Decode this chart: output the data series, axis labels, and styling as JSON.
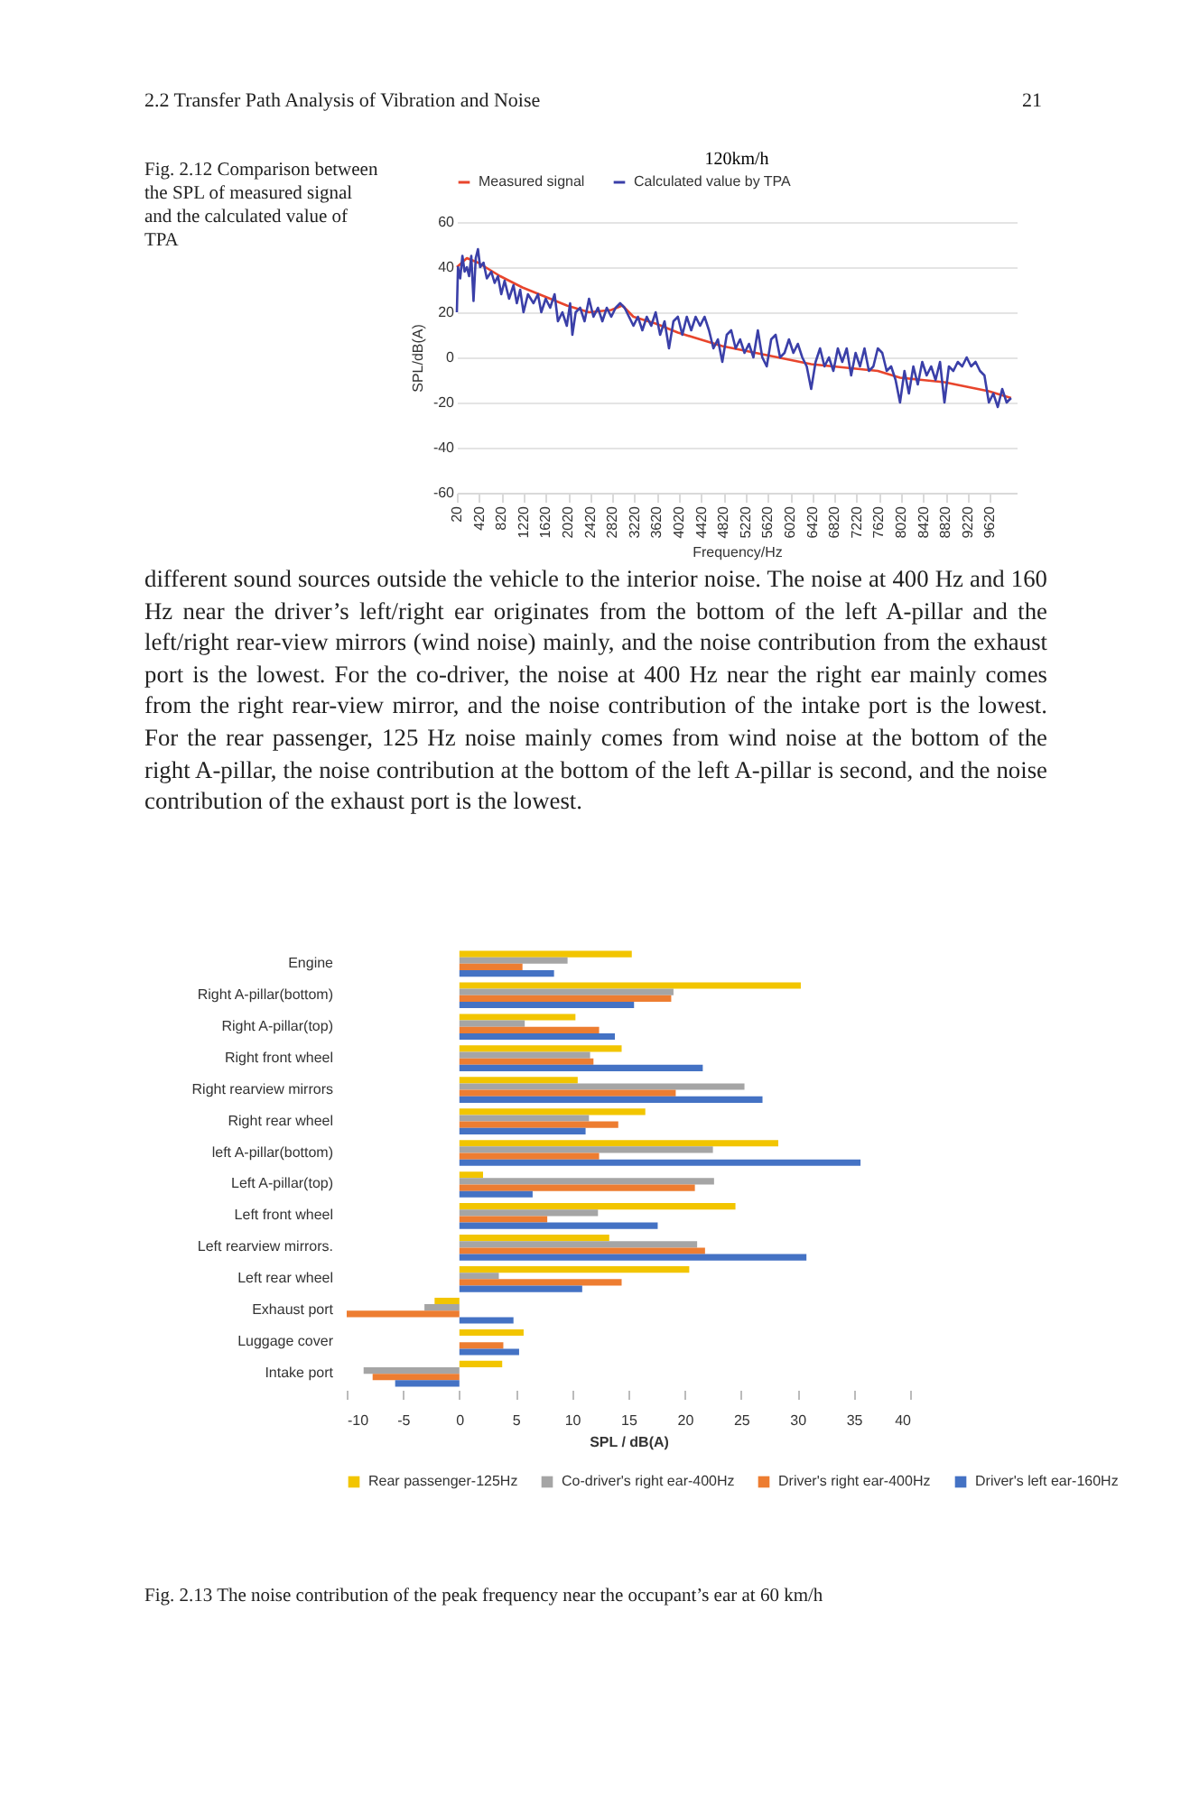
{
  "chart_data": [
    {
      "type": "line",
      "title": "120km/h",
      "xlabel": "Frequency/Hz",
      "ylabel": "SPL/dB(A)",
      "annotations": [
        "2.2 Transfer Path Analysis of Vibration and Noise",
        "21",
        "Fig. 2.12 Comparison between the SPL of measured signal and the calculated value of TPA"
      ],
      "xlim": [
        20,
        10100
      ],
      "xticks": [
        20,
        420,
        820,
        1220,
        1620,
        2020,
        2420,
        2820,
        3220,
        3620,
        4020,
        4420,
        4820,
        5220,
        5620,
        6020,
        6420,
        6820,
        7220,
        7620,
        8020,
        8420,
        8820,
        9220,
        9620
      ],
      "ylim": [
        -60,
        60
      ],
      "yticks": [
        -60,
        -40,
        -20,
        0,
        20,
        40,
        60
      ],
      "grid": "y",
      "legend": "top",
      "series": [
        {
          "name": "Measured signal",
          "color": "#e8452c",
          "x": [
            20,
            200,
            400,
            800,
            1200,
            1600,
            2000,
            2400,
            2800,
            3000,
            3200,
            3600,
            4000,
            4400,
            4800,
            5200,
            5600,
            6000,
            6400,
            6800,
            7200,
            7600,
            8000,
            8400,
            8800,
            9200,
            9600,
            10000
          ],
          "values": [
            40,
            44,
            42,
            36,
            31,
            27,
            23,
            20,
            21,
            23,
            18,
            15,
            11,
            8,
            5,
            3,
            1,
            -1,
            -3,
            -4,
            -5,
            -6,
            -9,
            -10,
            -11,
            -13,
            -15,
            -18
          ]
        },
        {
          "name": "Calculated value by TPA",
          "color": "#3a3fa8",
          "x": [
            20,
            40,
            80,
            120,
            160,
            200,
            240,
            280,
            320,
            360,
            400,
            440,
            500,
            560,
            640,
            700,
            760,
            820,
            880,
            960,
            1040,
            1100,
            1160,
            1220,
            1300,
            1400,
            1480,
            1540,
            1620,
            1700,
            1780,
            1840,
            1920,
            2000,
            2060,
            2100,
            2160,
            2240,
            2320,
            2400,
            2480,
            2560,
            2640,
            2720,
            2800,
            2880,
            2960,
            3040,
            3120,
            3200,
            3280,
            3360,
            3440,
            3520,
            3600,
            3680,
            3760,
            3840,
            3920,
            4000,
            4080,
            4160,
            4240,
            4320,
            4400,
            4480,
            4560,
            4640,
            4720,
            4800,
            4880,
            4960,
            5040,
            5120,
            5200,
            5280,
            5360,
            5440,
            5520,
            5600,
            5680,
            5760,
            5840,
            5920,
            6000,
            6080,
            6160,
            6240,
            6320,
            6400,
            6480,
            6560,
            6640,
            6720,
            6800,
            6880,
            6960,
            7040,
            7120,
            7200,
            7280,
            7360,
            7440,
            7520,
            7600,
            7680,
            7760,
            7840,
            7920,
            8000,
            8080,
            8160,
            8240,
            8320,
            8400,
            8480,
            8560,
            8640,
            8720,
            8800,
            8880,
            8960,
            9040,
            9120,
            9200,
            9280,
            9360,
            9440,
            9520,
            9600,
            9680,
            9760,
            9840,
            9920,
            10000
          ],
          "values": [
            20,
            40,
            35,
            45,
            38,
            40,
            36,
            45,
            25,
            44,
            48,
            40,
            42,
            35,
            38,
            33,
            36,
            28,
            34,
            26,
            32,
            24,
            30,
            20,
            28,
            24,
            28,
            20,
            26,
            22,
            28,
            16,
            20,
            14,
            24,
            10,
            20,
            22,
            16,
            26,
            18,
            22,
            16,
            22,
            18,
            22,
            24,
            22,
            18,
            14,
            18,
            12,
            18,
            14,
            20,
            10,
            16,
            4,
            16,
            18,
            10,
            18,
            12,
            18,
            14,
            18,
            12,
            4,
            8,
            -2,
            10,
            12,
            4,
            8,
            2,
            6,
            0,
            12,
            0,
            -4,
            8,
            10,
            0,
            2,
            8,
            2,
            6,
            0,
            -4,
            -14,
            -2,
            4,
            -4,
            0,
            -6,
            4,
            -2,
            4,
            -8,
            2,
            -4,
            4,
            -6,
            -4,
            4,
            2,
            -6,
            -4,
            -10,
            -20,
            -6,
            -16,
            -4,
            -12,
            -2,
            -8,
            -4,
            -10,
            -2,
            -20,
            -4,
            -6,
            -2,
            -4,
            0,
            -4,
            -2,
            -6,
            -8,
            -20,
            -16,
            -22,
            -14,
            -20,
            -18
          ]
        }
      ]
    },
    {
      "type": "bar",
      "orientation": "horizontal",
      "xlabel": "SPL / dB(A)",
      "legend": "bottom",
      "annotations": [
        "different sound sources outside the vehicle to the interior noise. The noise at 400 Hz and 160 Hz near the driver’s left/right ear originates from the bottom of the left A-pillar and the left/right rear-view mirrors (wind noise) mainly, and the noise contribution from the exhaust port is the lowest. For the co-driver, the noise at 400 Hz near the right ear mainly comes from the right rear-view mirror, and the noise contribution of the intake port is the lowest. For the rear passenger, 125 Hz noise mainly comes from wind noise at the bottom of the right A-pillar, the noise contribution at the bottom of the left A-pillar is second, and the noise contribution of the exhaust port is the lowest.",
        "Fig. 2.13 The noise contribution of the peak frequency near the occupant’s ear at 60 km/h"
      ],
      "categories": [
        "Engine",
        "Right A-pillar(bottom)",
        "Right A-pillar(top)",
        "Right front wheel",
        "Right rearview mirrors",
        "Right rear wheel",
        "left A-pillar(bottom)",
        "Left A-pillar(top)",
        "Left front wheel",
        "Left rearview mirrors.",
        "Left rear wheel",
        "Exhaust port",
        "Luggage cover",
        "Intake port"
      ],
      "xlim": [
        -10,
        40
      ],
      "xticks": [
        -10,
        -5,
        0,
        5,
        10,
        15,
        20,
        25,
        30,
        35,
        40
      ],
      "series": [
        {
          "name": "Rear passenger-125Hz",
          "color": "#f2c500",
          "values": [
            15.3,
            30.3,
            10.3,
            14.4,
            10.5,
            16.5,
            28.3,
            2.1,
            24.5,
            13.3,
            20.4,
            -2.2,
            5.7,
            3.8
          ]
        },
        {
          "name": "Co-driver's right ear-400Hz",
          "color": "#a5a5a5",
          "values": [
            9.6,
            19.0,
            5.8,
            11.6,
            25.3,
            11.5,
            22.5,
            22.6,
            12.3,
            21.1,
            3.5,
            -3.1,
            null,
            -8.5
          ]
        },
        {
          "name": "Driver's right ear-400Hz",
          "color": "#ed7d31",
          "values": [
            5.6,
            18.8,
            12.4,
            11.9,
            19.2,
            14.1,
            12.4,
            20.9,
            7.8,
            21.8,
            14.4,
            -10.0,
            3.9,
            -7.7
          ]
        },
        {
          "name": "Driver's left ear-160Hz",
          "color": "#4472c4",
          "values": [
            8.4,
            15.5,
            13.8,
            21.6,
            26.9,
            11.2,
            35.6,
            6.5,
            17.6,
            30.8,
            10.9,
            4.8,
            5.3,
            -5.7
          ]
        }
      ]
    }
  ]
}
